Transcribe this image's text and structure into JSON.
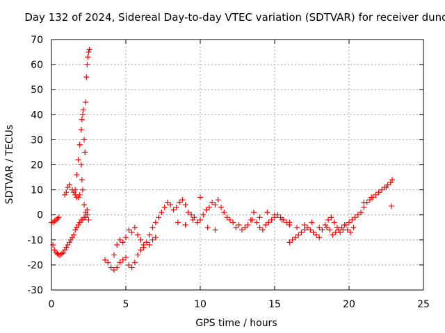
{
  "chart_data": {
    "type": "scatter",
    "title": "Day 132 of 2024, Sidereal Day-to-day VTEC variation (SDTVAR) for receiver dund",
    "xlabel": "GPS time / hours",
    "ylabel": "SDTVAR / TECUs",
    "xlim": [
      0,
      25
    ],
    "ylim": [
      -30,
      70
    ],
    "xticks": [
      0,
      5,
      10,
      15,
      20,
      25
    ],
    "yticks": [
      -30,
      -20,
      -10,
      0,
      10,
      20,
      30,
      40,
      50,
      60,
      70
    ],
    "grid": true,
    "marker": "+",
    "series_color": "#ff0000",
    "series": [
      {
        "name": "SDTVAR",
        "x": [
          0.0,
          0.1,
          0.2,
          0.3,
          0.4,
          0.5,
          0.1,
          0.2,
          0.3,
          0.4,
          0.5,
          0.6,
          0.7,
          0.8,
          0.9,
          1.0,
          1.1,
          1.2,
          1.3,
          1.4,
          1.5,
          1.6,
          1.7,
          1.8,
          1.9,
          2.0,
          2.1,
          2.2,
          2.3,
          2.4,
          0.9,
          1.0,
          1.1,
          1.2,
          1.4,
          1.5,
          1.6,
          1.7,
          1.8,
          1.9,
          1.6,
          1.7,
          1.8,
          1.9,
          2.0,
          2.05,
          2.1,
          2.15,
          2.2,
          2.25,
          2.3,
          2.35,
          2.4,
          2.45,
          2.5,
          2.55,
          2.0,
          2.05,
          2.1,
          2.2,
          2.3,
          2.4,
          2.5,
          3.6,
          3.8,
          4.0,
          4.2,
          4.4,
          4.6,
          4.8,
          5.0,
          5.2,
          5.4,
          5.6,
          5.8,
          6.0,
          6.2,
          6.4,
          6.6,
          6.8,
          7.0,
          4.2,
          4.4,
          4.6,
          4.8,
          5.0,
          5.2,
          5.4,
          5.6,
          5.8,
          6.0,
          6.2,
          6.4,
          6.6,
          6.8,
          7.0,
          7.2,
          7.4,
          7.6,
          7.8,
          8.0,
          8.2,
          8.4,
          8.6,
          8.8,
          9.0,
          9.2,
          9.4,
          9.6,
          9.8,
          10.0,
          10.2,
          10.4,
          10.6,
          10.8,
          11.0,
          11.2,
          11.4,
          11.6,
          11.8,
          12.0,
          8.5,
          9.0,
          9.5,
          10.0,
          10.5,
          11.0,
          12.2,
          12.4,
          12.6,
          12.8,
          13.0,
          13.2,
          13.4,
          13.6,
          13.8,
          14.0,
          14.2,
          14.4,
          14.6,
          14.8,
          15.0,
          15.2,
          15.4,
          15.6,
          15.8,
          16.0,
          13.5,
          14.0,
          14.5,
          15.0,
          15.5,
          16.0,
          16.5,
          17.0,
          17.5,
          18.0,
          16.0,
          16.2,
          16.4,
          16.6,
          16.8,
          17.0,
          17.2,
          17.4,
          17.6,
          17.8,
          18.0,
          18.2,
          18.4,
          18.6,
          18.8,
          19.0,
          19.2,
          19.4,
          19.6,
          19.8,
          18.5,
          18.7,
          18.9,
          19.1,
          19.3,
          19.5,
          19.7,
          19.9,
          20.1,
          20.3,
          20.0,
          20.2,
          20.4,
          20.6,
          20.8,
          21.0,
          21.2,
          21.4,
          21.6,
          21.8,
          22.0,
          22.2,
          22.4,
          22.6,
          22.8,
          22.9,
          21.0,
          21.5,
          22.0,
          22.5,
          22.85
        ],
        "y": [
          -3,
          -3,
          -2.5,
          -2,
          -1.5,
          -1,
          -12,
          -14,
          -15,
          -15.5,
          -16,
          -16,
          -15.5,
          -15,
          -14,
          -13,
          -12,
          -11,
          -10,
          -9,
          -8,
          -6,
          -5,
          -4,
          -3,
          -2,
          -2,
          -1,
          -1,
          0,
          8,
          9,
          11,
          12,
          10,
          9,
          8,
          7,
          7,
          8,
          10,
          16,
          22,
          28,
          34,
          38,
          40,
          42,
          30,
          25,
          45,
          55,
          60,
          63,
          65,
          66,
          20,
          14,
          10,
          4,
          1,
          2,
          -2,
          -18,
          -19,
          -21,
          -22,
          -21,
          -19,
          -18,
          -17,
          -20,
          -21,
          -19,
          -16,
          -14,
          -12,
          -11,
          -12,
          -10,
          -9,
          -16,
          -12,
          -10,
          -11,
          -9,
          -6,
          -7,
          -5,
          -8,
          -10,
          -13,
          -11,
          -8,
          -5,
          -3,
          -1,
          1,
          3,
          5,
          4,
          2,
          3,
          5,
          6,
          4,
          1,
          0,
          -1,
          -3,
          -2,
          0,
          2,
          3,
          5,
          4,
          6,
          3,
          1,
          -1,
          -2,
          -3,
          -4,
          -2,
          7,
          -5,
          -6,
          -3,
          -5,
          -4,
          -6,
          -5,
          -4,
          -2,
          1,
          -3,
          -5,
          -6,
          -4,
          -3,
          -2,
          -1,
          0,
          -1,
          -2,
          -3,
          -4,
          -2,
          -1,
          1,
          0,
          -2,
          -3,
          -5,
          -4,
          -3,
          -5,
          -11,
          -10,
          -9,
          -8,
          -7,
          -6,
          -5,
          -6,
          -7,
          -8,
          -9,
          -6,
          -4,
          -2,
          -1,
          -3,
          -5,
          -7,
          -6,
          -4,
          -5,
          -6,
          -8,
          -7,
          -6,
          -5,
          -4,
          -6,
          -7,
          -5,
          -3,
          -2,
          -1,
          0,
          1,
          3,
          5,
          6,
          7,
          8,
          9,
          10,
          11,
          12,
          13,
          14,
          5,
          7,
          9,
          11,
          3.5
        ]
      }
    ]
  }
}
